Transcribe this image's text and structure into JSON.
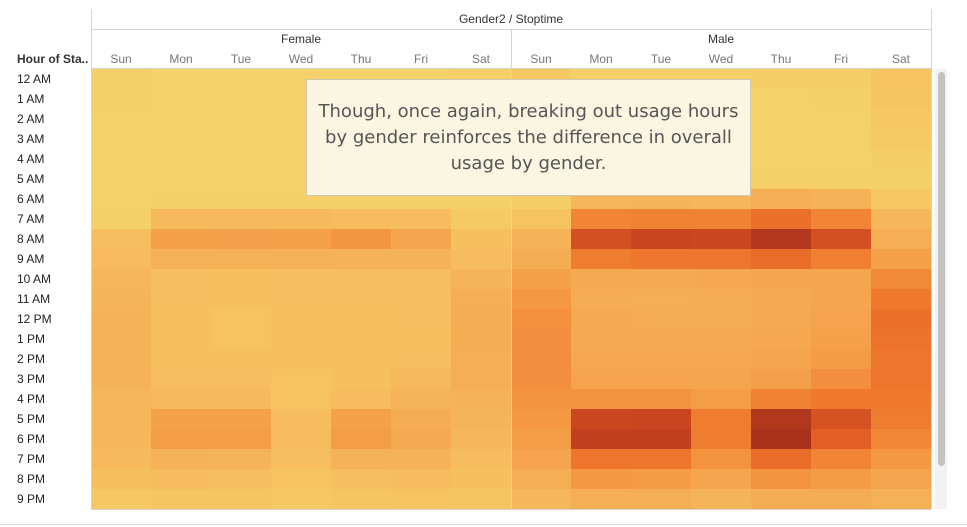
{
  "header": {
    "title": "Gender2 / Stoptime",
    "row_title": "Hour of Sta.."
  },
  "annotation": {
    "text": "Though, once again, breaking out usage hours by gender reinforces the difference in overall usage by gender."
  },
  "colors": {
    "scale": [
      "#f5d46a",
      "#f6b559",
      "#f49a45",
      "#ef7a2e",
      "#e25d24",
      "#c9441f",
      "#a8321c"
    ],
    "divider": "#d4d4d4",
    "annotation_bg": "#fbf6e2"
  },
  "chart_data": {
    "type": "heatmap",
    "title": "Gender2 / Stoptime",
    "ylabel": "Hour of Sta..",
    "groups": [
      "Female",
      "Male"
    ],
    "days": [
      "Sun",
      "Mon",
      "Tue",
      "Wed",
      "Thu",
      "Fri",
      "Sat"
    ],
    "hours": [
      "12 AM",
      "1 AM",
      "2 AM",
      "3 AM",
      "4 AM",
      "5 AM",
      "6 AM",
      "7 AM",
      "8 AM",
      "9 AM",
      "10 AM",
      "11 AM",
      "12 PM",
      "1 PM",
      "2 PM",
      "3 PM",
      "4 PM",
      "5 PM",
      "6 PM",
      "7 PM",
      "8 PM",
      "9 PM"
    ],
    "values": {
      "Female": [
        [
          2,
          1,
          1,
          1,
          1,
          1,
          2
        ],
        [
          2,
          1,
          1,
          1,
          1,
          1,
          1
        ],
        [
          1,
          1,
          1,
          1,
          1,
          1,
          1
        ],
        [
          1,
          1,
          1,
          1,
          1,
          1,
          1
        ],
        [
          1,
          1,
          1,
          1,
          1,
          1,
          1
        ],
        [
          1,
          1,
          1,
          1,
          1,
          1,
          1
        ],
        [
          1,
          2,
          2,
          2,
          2,
          2,
          2
        ],
        [
          2,
          11,
          11,
          11,
          10,
          10,
          4
        ],
        [
          9,
          22,
          23,
          22,
          27,
          20,
          8
        ],
        [
          10,
          15,
          15,
          15,
          14,
          14,
          10
        ],
        [
          12,
          9,
          8,
          9,
          9,
          9,
          13
        ],
        [
          13,
          9,
          8,
          9,
          9,
          9,
          16
        ],
        [
          14,
          8,
          7,
          8,
          8,
          9,
          17
        ],
        [
          14,
          8,
          7,
          8,
          8,
          8,
          17
        ],
        [
          14,
          8,
          8,
          8,
          8,
          9,
          16
        ],
        [
          14,
          9,
          9,
          7,
          8,
          11,
          16
        ],
        [
          12,
          11,
          11,
          7,
          10,
          13,
          14
        ],
        [
          12,
          22,
          22,
          10,
          22,
          17,
          13
        ],
        [
          12,
          24,
          24,
          10,
          24,
          18,
          12
        ],
        [
          11,
          14,
          13,
          9,
          14,
          14,
          10
        ],
        [
          8,
          10,
          9,
          7,
          9,
          10,
          8
        ],
        [
          5,
          6,
          6,
          5,
          6,
          7,
          6
        ]
      ],
      "Male": [
        [
          5,
          2,
          2,
          2,
          3,
          3,
          7
        ],
        [
          4,
          1,
          1,
          1,
          1,
          2,
          6
        ],
        [
          3,
          1,
          1,
          1,
          1,
          1,
          5
        ],
        [
          2,
          1,
          1,
          1,
          1,
          1,
          4
        ],
        [
          2,
          1,
          1,
          1,
          1,
          1,
          3
        ],
        [
          1,
          2,
          2,
          2,
          2,
          2,
          2
        ],
        [
          3,
          12,
          13,
          12,
          16,
          14,
          5
        ],
        [
          7,
          34,
          35,
          35,
          42,
          34,
          12
        ],
        [
          14,
          58,
          63,
          62,
          72,
          58,
          16
        ],
        [
          17,
          37,
          40,
          40,
          44,
          36,
          22
        ],
        [
          22,
          18,
          18,
          19,
          20,
          20,
          32
        ],
        [
          26,
          17,
          16,
          17,
          18,
          20,
          38
        ],
        [
          29,
          18,
          17,
          17,
          18,
          21,
          42
        ],
        [
          30,
          18,
          18,
          18,
          19,
          22,
          41
        ],
        [
          30,
          19,
          19,
          19,
          20,
          25,
          40
        ],
        [
          30,
          21,
          21,
          20,
          23,
          30,
          40
        ],
        [
          28,
          28,
          28,
          24,
          35,
          38,
          38
        ],
        [
          26,
          62,
          63,
          37,
          72,
          56,
          37
        ],
        [
          24,
          66,
          66,
          37,
          76,
          50,
          33
        ],
        [
          21,
          40,
          40,
          28,
          44,
          34,
          26
        ],
        [
          16,
          26,
          25,
          20,
          28,
          25,
          20
        ],
        [
          12,
          16,
          16,
          13,
          17,
          17,
          15
        ]
      ]
    }
  }
}
